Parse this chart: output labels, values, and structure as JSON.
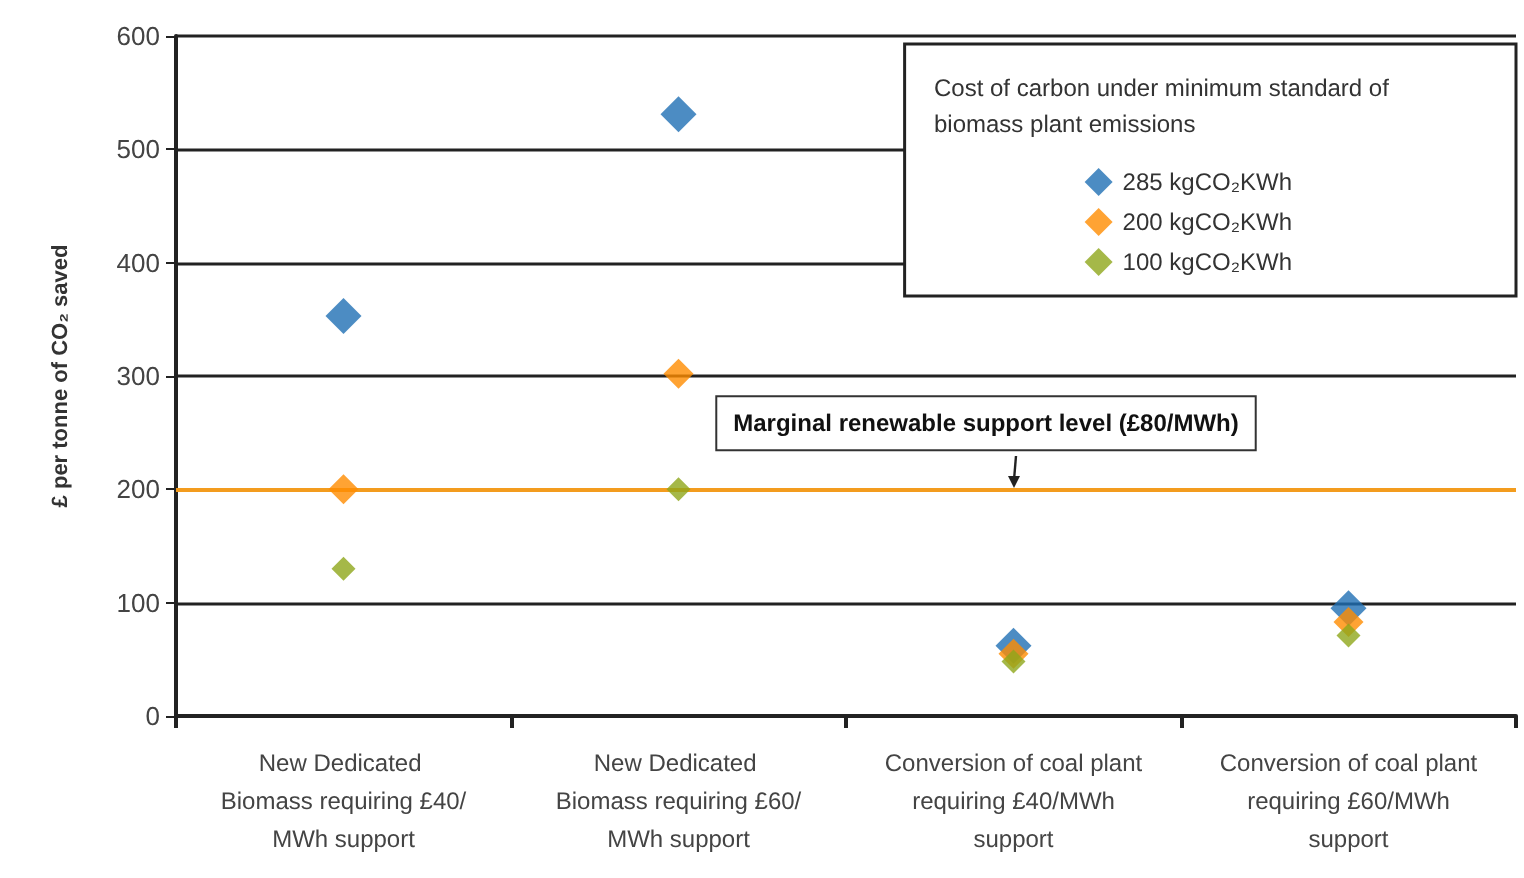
{
  "chart_data": {
    "type": "scatter",
    "ylabel": "£ per tonne of CO₂ saved",
    "legend_title": "Cost of carbon under minimum standard of biomass plant emissions",
    "categories": [
      "New Dedicated Biomass requiring £40/MWh support",
      "New Dedicated Biomass requiring £60/MWh support",
      "Conversion of coal plant requiring £40/MWh support",
      "Conversion of coal plant requiring £60/MWh support"
    ],
    "series": [
      {
        "name": "285 kgCO₂KWh",
        "color": "#1f6fb4",
        "values": [
          353,
          531,
          62,
          95
        ]
      },
      {
        "name": "200 kgCO₂KWh",
        "color": "#ff8c00",
        "values": [
          200,
          302,
          55,
          83
        ]
      },
      {
        "name": "100 kgCO₂KWh",
        "color": "#8ea61a",
        "values": [
          130,
          200,
          48,
          71
        ]
      }
    ],
    "ylim": [
      0,
      600
    ],
    "yticks": [
      0,
      100,
      200,
      300,
      400,
      500,
      600
    ],
    "grid": "y",
    "legend": "top right",
    "marker": "diamond",
    "ref_lines": [
      {
        "axis": "y",
        "value": 200,
        "label": "Marginal renewable support level (£80/MWh)",
        "color": "#f39c1e",
        "line_style": "solid"
      }
    ]
  }
}
